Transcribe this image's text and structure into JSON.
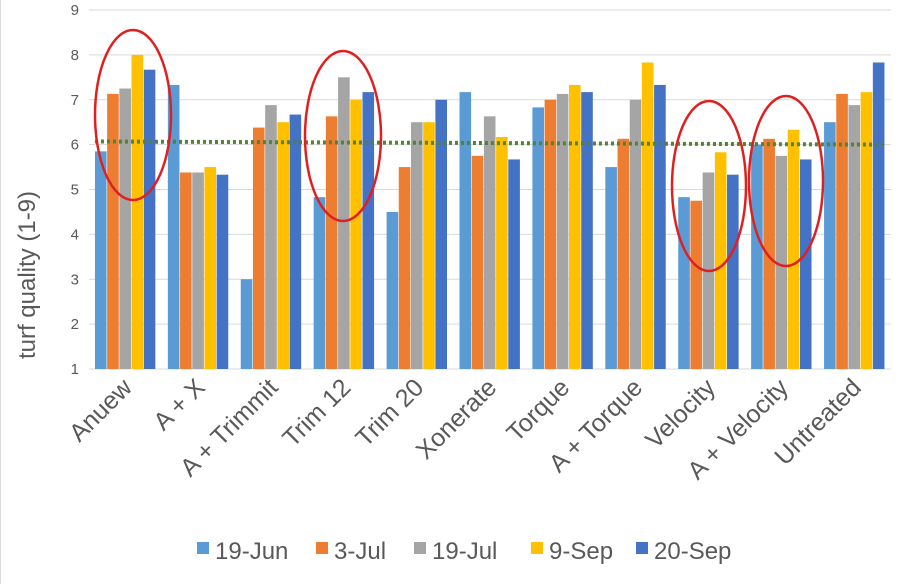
{
  "chart_data": {
    "type": "bar",
    "title": "",
    "xlabel": "",
    "ylabel": "turf quality (1-9)",
    "ylim": [
      1,
      9
    ],
    "y_ticks": [
      1,
      2,
      3,
      4,
      5,
      6,
      7,
      8,
      9
    ],
    "grid": true,
    "legend_position": "bottom",
    "categories": [
      "Anuew",
      "A + X",
      "A + Trimmit",
      "Trim 12",
      "Trim 20",
      "Xonerate",
      "Torque",
      "A + Torque",
      "Velocity",
      "A + Velocity",
      "Untreated"
    ],
    "series": [
      {
        "name": "19-Jun",
        "color": "#5B9BD5",
        "values": [
          5.85,
          7.33,
          3.0,
          4.83,
          4.5,
          7.17,
          6.83,
          5.5,
          4.83,
          6.0,
          6.5
        ]
      },
      {
        "name": "3-Jul",
        "color": "#ED7D31",
        "values": [
          7.13,
          5.38,
          6.38,
          6.63,
          5.5,
          5.75,
          7.0,
          6.13,
          4.75,
          6.13,
          7.13
        ]
      },
      {
        "name": "19-Jul",
        "color": "#A5A5A5",
        "values": [
          7.25,
          5.38,
          6.88,
          7.5,
          6.5,
          6.63,
          7.13,
          7.0,
          5.38,
          5.75,
          6.88
        ]
      },
      {
        "name": "9-Sep",
        "color": "#FFC000",
        "values": [
          8.0,
          5.5,
          6.5,
          7.0,
          6.5,
          6.17,
          7.33,
          7.83,
          5.83,
          6.33,
          7.17
        ]
      },
      {
        "name": "20-Sep",
        "color": "#4472C4",
        "values": [
          7.67,
          5.33,
          6.67,
          7.17,
          7.0,
          5.67,
          7.17,
          7.33,
          5.33,
          5.67,
          7.83
        ]
      }
    ],
    "trendline": {
      "style": "dotted",
      "color": "#548235",
      "start_value": 6.07,
      "end_value": 6.0
    },
    "highlighted_categories": [
      "Anuew",
      "Trim 12",
      "Velocity",
      "A + Velocity"
    ],
    "highlight_color": "#E02020"
  }
}
